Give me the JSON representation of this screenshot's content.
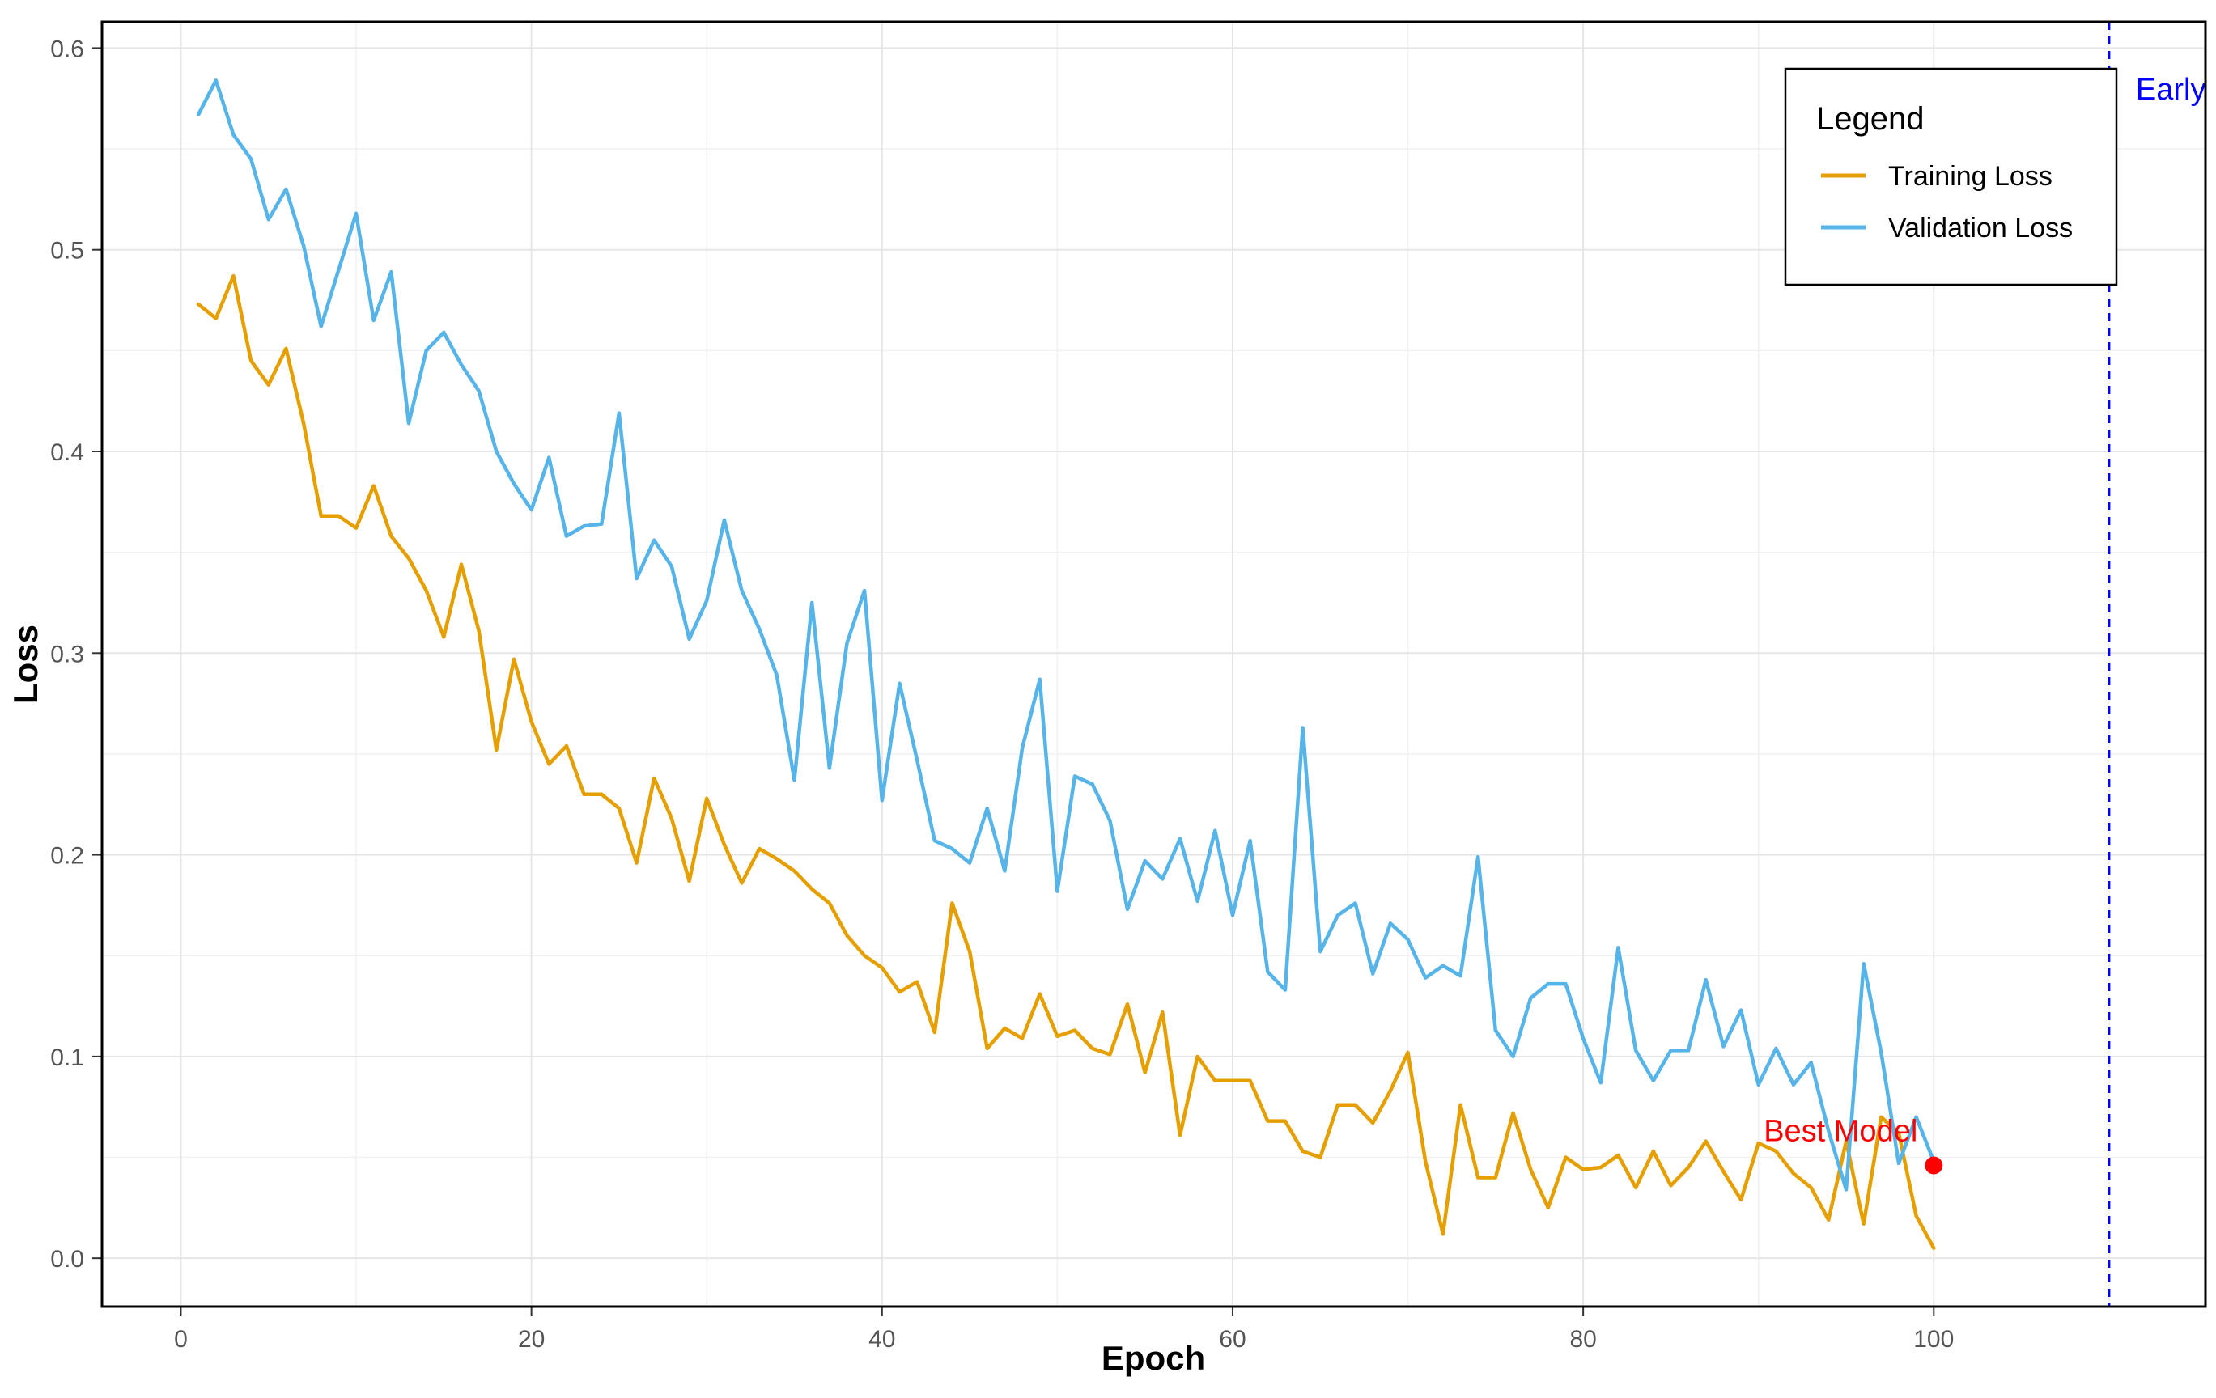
{
  "chart_data": {
    "type": "line",
    "title": "",
    "xlabel": "Epoch",
    "ylabel": "Loss",
    "xlim": [
      -4.5,
      115.5
    ],
    "ylim": [
      -0.024,
      0.613
    ],
    "x_ticks": [
      0,
      20,
      40,
      60,
      80,
      100
    ],
    "x_tick_labels": [
      "0",
      "20",
      "40",
      "60",
      "80",
      "100"
    ],
    "y_ticks": [
      0.0,
      0.1,
      0.2,
      0.3,
      0.4,
      0.5,
      0.6
    ],
    "y_tick_labels": [
      "0.0",
      "0.1",
      "0.2",
      "0.3",
      "0.4",
      "0.5",
      "0.6"
    ],
    "grid": true,
    "legend": {
      "title": "Legend",
      "position": "top-right"
    },
    "x": [
      1,
      2,
      3,
      4,
      5,
      6,
      7,
      8,
      9,
      10,
      11,
      12,
      13,
      14,
      15,
      16,
      17,
      18,
      19,
      20,
      21,
      22,
      23,
      24,
      25,
      26,
      27,
      28,
      29,
      30,
      31,
      32,
      33,
      34,
      35,
      36,
      37,
      38,
      39,
      40,
      41,
      42,
      43,
      44,
      45,
      46,
      47,
      48,
      49,
      50,
      51,
      52,
      53,
      54,
      55,
      56,
      57,
      58,
      59,
      60,
      61,
      62,
      63,
      64,
      65,
      66,
      67,
      68,
      69,
      70,
      71,
      72,
      73,
      74,
      75,
      76,
      77,
      78,
      79,
      80,
      81,
      82,
      83,
      84,
      85,
      86,
      87,
      88,
      89,
      90,
      91,
      92,
      93,
      94,
      95,
      96,
      97,
      98,
      99,
      100
    ],
    "series": [
      {
        "name": "Training Loss",
        "color": "#E69F00",
        "values": [
          0.473,
          0.466,
          0.487,
          0.445,
          0.433,
          0.451,
          0.414,
          0.368,
          0.368,
          0.362,
          0.383,
          0.358,
          0.347,
          0.331,
          0.308,
          0.344,
          0.311,
          0.252,
          0.297,
          0.266,
          0.245,
          0.254,
          0.23,
          0.23,
          0.223,
          0.196,
          0.238,
          0.218,
          0.187,
          0.228,
          0.205,
          0.186,
          0.203,
          0.198,
          0.192,
          0.183,
          0.176,
          0.16,
          0.15,
          0.144,
          0.132,
          0.137,
          0.112,
          0.176,
          0.152,
          0.104,
          0.114,
          0.109,
          0.131,
          0.11,
          0.113,
          0.104,
          0.101,
          0.126,
          0.092,
          0.122,
          0.061,
          0.1,
          0.088,
          0.088,
          0.088,
          0.068,
          0.068,
          0.053,
          0.05,
          0.076,
          0.076,
          0.067,
          0.083,
          0.102,
          0.048,
          0.012,
          0.076,
          0.04,
          0.04,
          0.072,
          0.044,
          0.025,
          0.05,
          0.044,
          0.045,
          0.051,
          0.035,
          0.053,
          0.036,
          0.045,
          0.058,
          0.043,
          0.029,
          0.057,
          0.053,
          0.042,
          0.035,
          0.019,
          0.058,
          0.017,
          0.07,
          0.062,
          0.021,
          0.005
        ]
      },
      {
        "name": "Validation Loss",
        "color": "#56B4E9",
        "values": [
          0.567,
          0.584,
          0.557,
          0.545,
          0.515,
          0.53,
          0.502,
          0.462,
          0.49,
          0.518,
          0.465,
          0.489,
          0.414,
          0.45,
          0.459,
          0.443,
          0.43,
          0.4,
          0.384,
          0.371,
          0.397,
          0.358,
          0.363,
          0.364,
          0.419,
          0.337,
          0.356,
          0.343,
          0.307,
          0.326,
          0.366,
          0.331,
          0.312,
          0.289,
          0.237,
          0.325,
          0.243,
          0.305,
          0.331,
          0.227,
          0.285,
          0.247,
          0.207,
          0.203,
          0.196,
          0.223,
          0.192,
          0.253,
          0.287,
          0.182,
          0.239,
          0.235,
          0.217,
          0.173,
          0.197,
          0.188,
          0.208,
          0.177,
          0.212,
          0.17,
          0.207,
          0.142,
          0.133,
          0.263,
          0.152,
          0.17,
          0.176,
          0.141,
          0.166,
          0.158,
          0.139,
          0.145,
          0.14,
          0.199,
          0.113,
          0.1,
          0.129,
          0.136,
          0.136,
          0.109,
          0.087,
          0.154,
          0.103,
          0.088,
          0.103,
          0.103,
          0.138,
          0.105,
          0.123,
          0.086,
          0.104,
          0.086,
          0.097,
          0.063,
          0.034,
          0.146,
          0.102,
          0.047,
          0.07,
          0.048
        ]
      }
    ],
    "annotations": [
      {
        "kind": "point",
        "label": "Best Model",
        "x": 100,
        "y": 0.046,
        "color": "#FF0000"
      },
      {
        "kind": "vline",
        "label": "Early",
        "x": 110,
        "color": "#0000FF",
        "style": "dashed"
      }
    ]
  }
}
